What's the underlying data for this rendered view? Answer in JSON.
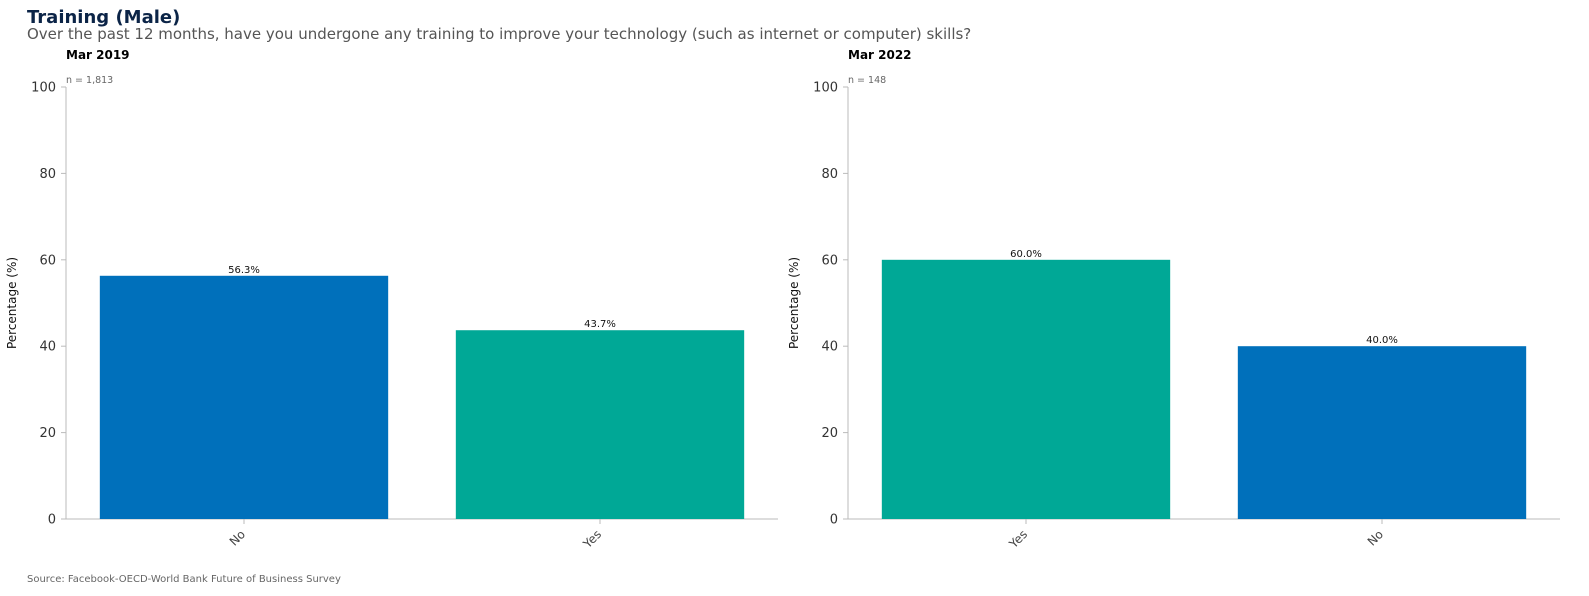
{
  "title": "Training (Male)",
  "subtitle": "Over the past 12 months, have you undergone any training to improve your technology (such as internet or computer) skills?",
  "source": "Source: Facebook-OECD-World Bank Future of Business Survey",
  "colors": {
    "No": "#0070bb",
    "Yes": "#00a896",
    "title": "#0b2447"
  },
  "chart_data": [
    {
      "type": "bar",
      "title": "Mar 2019",
      "n_label": "n = 1,813",
      "ylabel": "Percentage (%)",
      "ylim": [
        0,
        100
      ],
      "yticks": [
        0,
        20,
        40,
        60,
        80,
        100
      ],
      "categories": [
        "No",
        "Yes"
      ],
      "values": [
        56.3,
        43.7
      ],
      "data_labels": [
        "56.3%",
        "43.7%"
      ],
      "grid": false
    },
    {
      "type": "bar",
      "title": "Mar 2022",
      "n_label": "n = 148",
      "ylabel": "Percentage (%)",
      "ylim": [
        0,
        100
      ],
      "yticks": [
        0,
        20,
        40,
        60,
        80,
        100
      ],
      "categories": [
        "Yes",
        "No"
      ],
      "values": [
        60.0,
        40.0
      ],
      "data_labels": [
        "60.0%",
        "40.0%"
      ],
      "grid": false
    }
  ]
}
